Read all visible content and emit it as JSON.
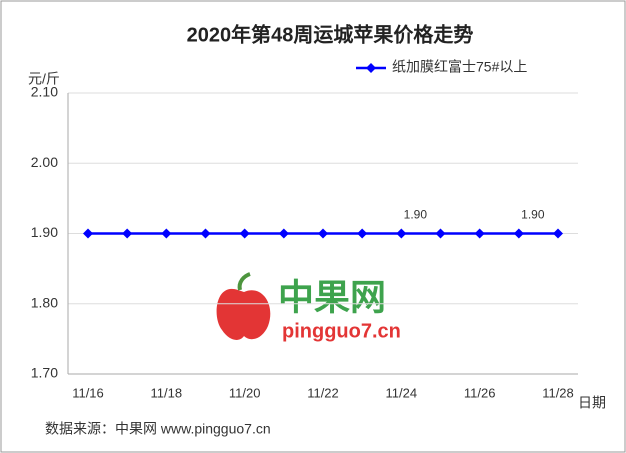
{
  "chart_data": {
    "type": "line",
    "title": "2020年第48周运城苹果价格走势",
    "y_label": "元/斤",
    "x_label": "日期",
    "categories": [
      "11/16",
      null,
      "11/18",
      null,
      "11/20",
      null,
      "11/22",
      null,
      "11/24",
      null,
      "11/26",
      null,
      "11/28"
    ],
    "series": [
      {
        "name": "纸加膜红富士75#以上",
        "color": "#0000ff",
        "values": [
          1.9,
          1.9,
          1.9,
          1.9,
          1.9,
          1.9,
          1.9,
          1.9,
          1.9,
          1.9,
          1.9,
          1.9,
          1.9
        ],
        "value_labels": [
          null,
          null,
          null,
          null,
          null,
          null,
          null,
          null,
          "1.90",
          null,
          null,
          "1.90",
          null
        ]
      }
    ],
    "ylim": [
      1.7,
      2.1
    ],
    "yticks": [
      {
        "value": 1.7,
        "label": "1.70"
      },
      {
        "value": 1.8,
        "label": "1.80"
      },
      {
        "value": 1.9,
        "label": "1.90"
      },
      {
        "value": 2.0,
        "label": "2.00"
      },
      {
        "value": 2.1,
        "label": "2.10"
      }
    ],
    "grid": true,
    "legend_position": "top-right",
    "source": "数据来源：中果网 www.pingguo7.cn",
    "watermark": {
      "name": "中果网",
      "url": "pingguo7.cn"
    }
  }
}
